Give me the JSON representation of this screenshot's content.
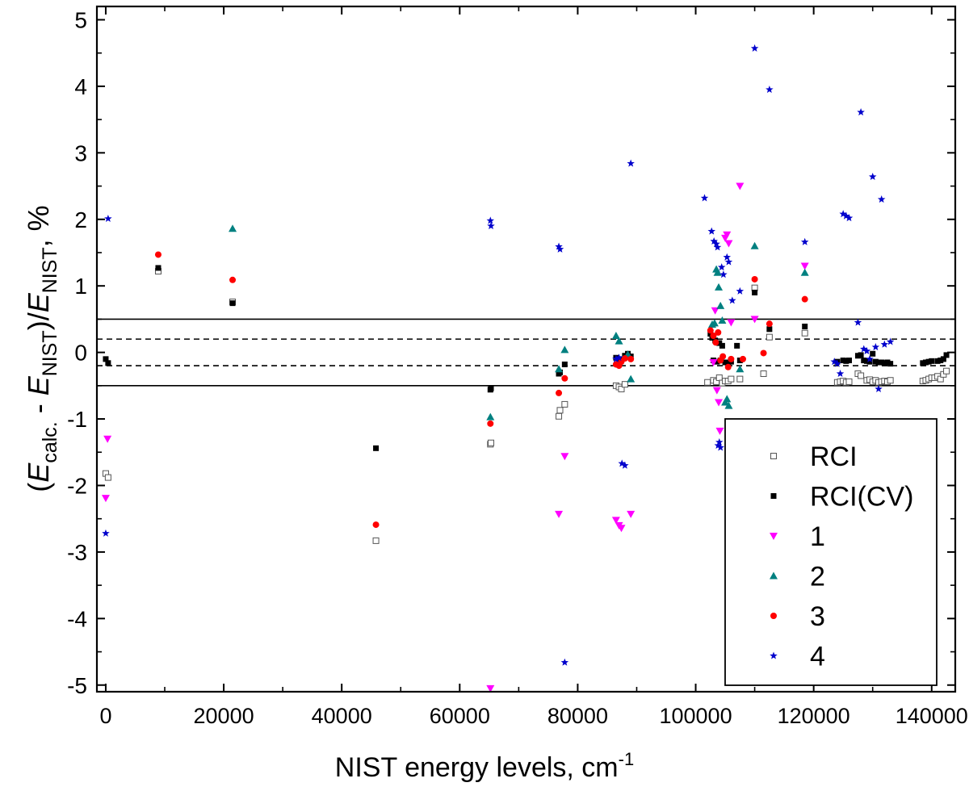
{
  "chart_data": {
    "type": "scatter",
    "title": "",
    "xlabel": {
      "main": "NIST energy levels, cm",
      "sup": "-1"
    },
    "ylabel": {
      "parts": [
        {
          "t": "(",
          "s": "n"
        },
        {
          "t": "E",
          "s": "i"
        },
        {
          "t": "calc.",
          "s": "sub"
        },
        {
          "t": " - ",
          "s": "n"
        },
        {
          "t": "E",
          "s": "i"
        },
        {
          "t": "NIST",
          "s": "sub"
        },
        {
          "t": ")/",
          "s": "n"
        },
        {
          "t": "E",
          "s": "i"
        },
        {
          "t": "NIST",
          "s": "sub"
        },
        {
          "t": ", %",
          "s": "n"
        }
      ]
    },
    "xlim": [
      -1500,
      144000
    ],
    "ylim": [
      -5.1,
      5.2
    ],
    "xticks": [
      0,
      20000,
      40000,
      60000,
      80000,
      100000,
      120000,
      140000
    ],
    "xtick_labels": [
      "0",
      "20000",
      "40000",
      "60000",
      "80000",
      "100000",
      "120000",
      "140000"
    ],
    "yticks": [
      5,
      4,
      3,
      2,
      1,
      0,
      -1,
      -2,
      -3,
      -4,
      -5
    ],
    "ytick_labels": [
      "5",
      "4",
      "3",
      "2",
      "1",
      "0",
      "-1",
      "-2",
      "-3",
      "-4",
      "-5"
    ],
    "reference_lines": [
      {
        "y": 0.5,
        "style": "solid"
      },
      {
        "y": 0.2,
        "style": "dashed"
      },
      {
        "y": -0.2,
        "style": "dashed"
      },
      {
        "y": -0.5,
        "style": "solid"
      }
    ],
    "legend_position": "bottom-right",
    "series": [
      {
        "name": "RCI",
        "marker": "square-open",
        "color": "#555555",
        "points": [
          [
            0,
            -1.82
          ],
          [
            400,
            -1.88
          ],
          [
            8900,
            1.22
          ],
          [
            21500,
            0.76
          ],
          [
            45800,
            -2.83
          ],
          [
            65200,
            -1.38
          ],
          [
            65300,
            -1.36
          ],
          [
            76800,
            -0.96
          ],
          [
            77000,
            -0.87
          ],
          [
            77800,
            -0.78
          ],
          [
            86500,
            -0.5
          ],
          [
            87000,
            -0.52
          ],
          [
            87400,
            -0.55
          ],
          [
            88000,
            -0.48
          ],
          [
            102000,
            -0.45
          ],
          [
            103000,
            -0.42
          ],
          [
            103500,
            -0.44
          ],
          [
            104000,
            -0.38
          ],
          [
            104500,
            -0.46
          ],
          [
            105000,
            -0.43
          ],
          [
            105500,
            -0.43
          ],
          [
            106000,
            -0.4
          ],
          [
            107500,
            -0.4
          ],
          [
            110000,
            0.97
          ],
          [
            111500,
            -0.32
          ],
          [
            112500,
            0.23
          ],
          [
            118500,
            0.29
          ],
          [
            124000,
            -0.45
          ],
          [
            124500,
            -0.44
          ],
          [
            125000,
            -0.43
          ],
          [
            125500,
            -0.45
          ],
          [
            126000,
            -0.44
          ],
          [
            127500,
            -0.32
          ],
          [
            128000,
            -0.35
          ],
          [
            129000,
            -0.42
          ],
          [
            129500,
            -0.41
          ],
          [
            130000,
            -0.44
          ],
          [
            130500,
            -0.42
          ],
          [
            131000,
            -0.45
          ],
          [
            131500,
            -0.44
          ],
          [
            132000,
            -0.43
          ],
          [
            132500,
            -0.44
          ],
          [
            133000,
            -0.42
          ],
          [
            138500,
            -0.43
          ],
          [
            139000,
            -0.42
          ],
          [
            139500,
            -0.4
          ],
          [
            140000,
            -0.38
          ],
          [
            140500,
            -0.38
          ],
          [
            141000,
            -0.36
          ],
          [
            141500,
            -0.4
          ],
          [
            142000,
            -0.33
          ],
          [
            142500,
            -0.28
          ]
        ]
      },
      {
        "name": "RCI(CV)",
        "marker": "square-filled",
        "color": "#000000",
        "points": [
          [
            0,
            -0.1
          ],
          [
            400,
            -0.16
          ],
          [
            8900,
            1.27
          ],
          [
            21500,
            0.74
          ],
          [
            45800,
            -1.44
          ],
          [
            65200,
            -0.56
          ],
          [
            65300,
            -0.54
          ],
          [
            76800,
            -0.32
          ],
          [
            77000,
            -0.3
          ],
          [
            77800,
            -0.18
          ],
          [
            86500,
            -0.08
          ],
          [
            87000,
            -0.1
          ],
          [
            87400,
            -0.12
          ],
          [
            88000,
            -0.05
          ],
          [
            88500,
            -0.02
          ],
          [
            89000,
            -0.06
          ],
          [
            102500,
            0.28
          ],
          [
            102800,
            0.22
          ],
          [
            103000,
            -0.12
          ],
          [
            103300,
            0.18
          ],
          [
            103600,
            -0.14
          ],
          [
            104000,
            0.14
          ],
          [
            104200,
            -0.12
          ],
          [
            104500,
            0.1
          ],
          [
            105000,
            -0.15
          ],
          [
            105500,
            -0.16
          ],
          [
            106000,
            -0.14
          ],
          [
            107000,
            0.1
          ],
          [
            107500,
            -0.12
          ],
          [
            110000,
            0.9
          ],
          [
            112500,
            0.35
          ],
          [
            118500,
            0.39
          ],
          [
            124000,
            -0.14
          ],
          [
            125000,
            -0.12
          ],
          [
            125500,
            -0.13
          ],
          [
            126000,
            -0.12
          ],
          [
            127500,
            -0.05
          ],
          [
            128000,
            -0.04
          ],
          [
            128500,
            -0.12
          ],
          [
            129000,
            -0.13
          ],
          [
            129500,
            -0.14
          ],
          [
            130000,
            -0.02
          ],
          [
            130500,
            -0.14
          ],
          [
            131000,
            -0.15
          ],
          [
            131500,
            -0.15
          ],
          [
            132000,
            -0.16
          ],
          [
            132500,
            -0.15
          ],
          [
            133000,
            -0.17
          ],
          [
            138500,
            -0.16
          ],
          [
            139000,
            -0.15
          ],
          [
            139500,
            -0.14
          ],
          [
            140000,
            -0.13
          ],
          [
            141000,
            -0.13
          ],
          [
            141500,
            -0.12
          ],
          [
            142000,
            -0.1
          ],
          [
            142500,
            -0.04
          ]
        ]
      },
      {
        "name": "1",
        "marker": "triangle-down",
        "color": "#ff00ff",
        "points": [
          [
            0,
            -2.19
          ],
          [
            300,
            -1.3
          ],
          [
            65200,
            -5.05
          ],
          [
            76800,
            -2.43
          ],
          [
            77800,
            -1.56
          ],
          [
            86500,
            -2.52
          ],
          [
            87000,
            -2.6
          ],
          [
            87400,
            -2.64
          ],
          [
            89000,
            -2.43
          ],
          [
            103000,
            -0.15
          ],
          [
            103300,
            0.63
          ],
          [
            103600,
            -0.57
          ],
          [
            103900,
            -0.75
          ],
          [
            104100,
            -1.18
          ],
          [
            105000,
            1.72
          ],
          [
            105300,
            1.77
          ],
          [
            105600,
            1.64
          ],
          [
            106000,
            0.45
          ],
          [
            107500,
            2.5
          ],
          [
            110000,
            0.5
          ],
          [
            118500,
            1.3
          ]
        ]
      },
      {
        "name": "2",
        "marker": "triangle-up",
        "color": "#008080",
        "points": [
          [
            21500,
            1.86
          ],
          [
            65200,
            -0.97
          ],
          [
            76800,
            -0.25
          ],
          [
            77800,
            0.04
          ],
          [
            86500,
            0.25
          ],
          [
            87000,
            0.17
          ],
          [
            88500,
            -0.03
          ],
          [
            89000,
            -0.4
          ],
          [
            102800,
            0.42
          ],
          [
            103200,
            0.44
          ],
          [
            103500,
            1.25
          ],
          [
            103700,
            1.2
          ],
          [
            103900,
            0.98
          ],
          [
            104200,
            0.7
          ],
          [
            104500,
            0.48
          ],
          [
            105000,
            -0.75
          ],
          [
            105300,
            -0.7
          ],
          [
            105600,
            -0.8
          ],
          [
            107500,
            -0.25
          ],
          [
            110000,
            1.6
          ],
          [
            118500,
            1.2
          ]
        ]
      },
      {
        "name": "3",
        "marker": "circle",
        "color": "#ff0000",
        "points": [
          [
            8900,
            1.47
          ],
          [
            21500,
            1.09
          ],
          [
            45800,
            -2.59
          ],
          [
            65200,
            -1.07
          ],
          [
            76800,
            -0.61
          ],
          [
            77800,
            -0.39
          ],
          [
            86500,
            -0.18
          ],
          [
            87000,
            -0.2
          ],
          [
            87400,
            -0.14
          ],
          [
            88000,
            -0.09
          ],
          [
            89000,
            -0.1
          ],
          [
            102500,
            0.33
          ],
          [
            103000,
            0.25
          ],
          [
            103400,
            0.15
          ],
          [
            103800,
            0.3
          ],
          [
            104200,
            -0.12
          ],
          [
            104600,
            -0.06
          ],
          [
            105500,
            -0.22
          ],
          [
            106000,
            -0.1
          ],
          [
            108000,
            -0.1
          ],
          [
            110000,
            1.1
          ],
          [
            111500,
            -0.01
          ],
          [
            112500,
            0.43
          ],
          [
            118500,
            0.8
          ]
        ]
      },
      {
        "name": "4",
        "marker": "star",
        "color": "#0000cc",
        "points": [
          [
            0,
            -2.72
          ],
          [
            400,
            2.01
          ],
          [
            65200,
            1.98
          ],
          [
            65300,
            1.9
          ],
          [
            76800,
            1.59
          ],
          [
            77000,
            1.55
          ],
          [
            77800,
            -4.66
          ],
          [
            86500,
            -0.1
          ],
          [
            87000,
            -0.08
          ],
          [
            87500,
            -1.67
          ],
          [
            88000,
            -1.7
          ],
          [
            89000,
            2.84
          ],
          [
            101500,
            2.32
          ],
          [
            102700,
            1.82
          ],
          [
            103100,
            1.67
          ],
          [
            103500,
            1.63
          ],
          [
            103700,
            1.58
          ],
          [
            103800,
            -1.4
          ],
          [
            104000,
            -1.35
          ],
          [
            104200,
            -1.43
          ],
          [
            104400,
            1.28
          ],
          [
            104700,
            1.17
          ],
          [
            105300,
            1.43
          ],
          [
            105600,
            1.36
          ],
          [
            106200,
            0.78
          ],
          [
            107500,
            0.92
          ],
          [
            110000,
            4.57
          ],
          [
            112500,
            3.95
          ],
          [
            118500,
            1.66
          ],
          [
            123500,
            -0.14
          ],
          [
            124000,
            -0.17
          ],
          [
            124500,
            -0.32
          ],
          [
            125000,
            2.08
          ],
          [
            125500,
            2.05
          ],
          [
            126000,
            2.02
          ],
          [
            127500,
            0.45
          ],
          [
            128000,
            3.61
          ],
          [
            128500,
            0.05
          ],
          [
            129000,
            0.02
          ],
          [
            129500,
            -0.1
          ],
          [
            130000,
            2.64
          ],
          [
            130500,
            0.08
          ],
          [
            131000,
            -0.55
          ],
          [
            131500,
            2.3
          ],
          [
            132000,
            0.12
          ],
          [
            133000,
            0.16
          ]
        ]
      }
    ]
  }
}
